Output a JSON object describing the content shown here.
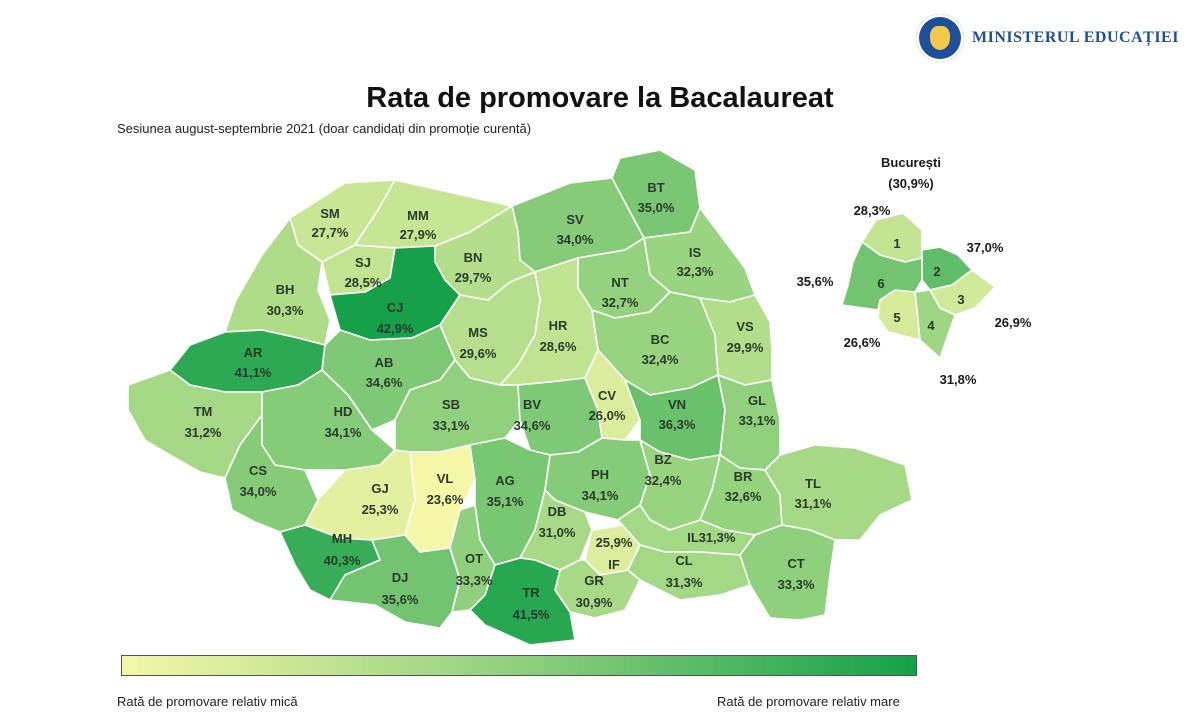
{
  "header": {
    "ministry": "MINISTERUL EDUCAȚIEI",
    "title": "Rata de promovare la Bacalaureat",
    "subtitle": "Sesiunea august-septembrie 2021 (doar candidați din promoție curentă)"
  },
  "scale": {
    "min": 23.6,
    "max": 42.9,
    "low_color": "#f4f7a8",
    "mid_color": "#8fd07c",
    "high_color": "#16a04a"
  },
  "legend": {
    "low_label": "Rată de promovare relativ mică",
    "high_label": "Rată de promovare relativ mare"
  },
  "counties": [
    {
      "code": "SM",
      "value": 27.7,
      "label": "27,7%"
    },
    {
      "code": "MM",
      "value": 27.9,
      "label": "27,9%"
    },
    {
      "code": "SV",
      "value": 34.0,
      "label": "34,0%"
    },
    {
      "code": "BT",
      "value": 35.0,
      "label": "35,0%"
    },
    {
      "code": "BH",
      "value": 30.3,
      "label": "30,3%"
    },
    {
      "code": "SJ",
      "value": 28.5,
      "label": "28,5%"
    },
    {
      "code": "BN",
      "value": 29.7,
      "label": "29,7%"
    },
    {
      "code": "CJ",
      "value": 42.9,
      "label": "42,9%"
    },
    {
      "code": "IS",
      "value": 32.3,
      "label": "32,3%"
    },
    {
      "code": "NT",
      "value": 32.7,
      "label": "32,7%"
    },
    {
      "code": "AR",
      "value": 41.1,
      "label": "41,1%"
    },
    {
      "code": "MS",
      "value": 29.6,
      "label": "29,6%"
    },
    {
      "code": "HR",
      "value": 28.6,
      "label": "28,6%"
    },
    {
      "code": "BC",
      "value": 32.4,
      "label": "32,4%"
    },
    {
      "code": "VS",
      "value": 29.9,
      "label": "29,9%"
    },
    {
      "code": "AB",
      "value": 34.6,
      "label": "34,6%"
    },
    {
      "code": "TM",
      "value": 31.2,
      "label": "31,2%"
    },
    {
      "code": "HD",
      "value": 34.1,
      "label": "34,1%"
    },
    {
      "code": "SB",
      "value": 33.1,
      "label": "33,1%"
    },
    {
      "code": "BV",
      "value": 34.6,
      "label": "34,6%"
    },
    {
      "code": "CV",
      "value": 26.0,
      "label": "26,0%"
    },
    {
      "code": "VN",
      "value": 36.3,
      "label": "36,3%"
    },
    {
      "code": "GL",
      "value": 33.1,
      "label": "33,1%"
    },
    {
      "code": "CS",
      "value": 34.0,
      "label": "34,0%"
    },
    {
      "code": "GJ",
      "value": 25.3,
      "label": "25,3%"
    },
    {
      "code": "VL",
      "value": 23.6,
      "label": "23,6%"
    },
    {
      "code": "AG",
      "value": 35.1,
      "label": "35,1%"
    },
    {
      "code": "PH",
      "value": 34.1,
      "label": "34,1%"
    },
    {
      "code": "BZ",
      "value": 32.4,
      "label": "32,4%"
    },
    {
      "code": "BR",
      "value": 32.6,
      "label": "32,6%"
    },
    {
      "code": "TL",
      "value": 31.1,
      "label": "31,1%"
    },
    {
      "code": "MH",
      "value": 40.3,
      "label": "40,3%"
    },
    {
      "code": "DB",
      "value": 31.0,
      "label": "31,0%"
    },
    {
      "code": "IF",
      "value": 25.9,
      "label": "25,9%"
    },
    {
      "code": "IL",
      "value": 31.3,
      "label": "31,3%"
    },
    {
      "code": "DJ",
      "value": 35.6,
      "label": "35,6%"
    },
    {
      "code": "OT",
      "value": 33.3,
      "label": "33,3%"
    },
    {
      "code": "GR",
      "value": 30.9,
      "label": "30,9%"
    },
    {
      "code": "CL",
      "value": 31.3,
      "label": "31,3%"
    },
    {
      "code": "CT",
      "value": 33.3,
      "label": "33,3%"
    },
    {
      "code": "TR",
      "value": 41.5,
      "label": "41,5%"
    }
  ],
  "bucharest": {
    "name": "București",
    "total_label": "(30,9%)",
    "sectors": [
      {
        "id": "1",
        "value": 28.3,
        "label": "28,3%"
      },
      {
        "id": "2",
        "value": 37.0,
        "label": "37,0%"
      },
      {
        "id": "3",
        "value": 26.9,
        "label": "26,9%"
      },
      {
        "id": "4",
        "value": 31.8,
        "label": "31,8%"
      },
      {
        "id": "5",
        "value": 26.6,
        "label": "26,6%"
      },
      {
        "id": "6",
        "value": 35.6,
        "label": "35,6%"
      }
    ]
  }
}
